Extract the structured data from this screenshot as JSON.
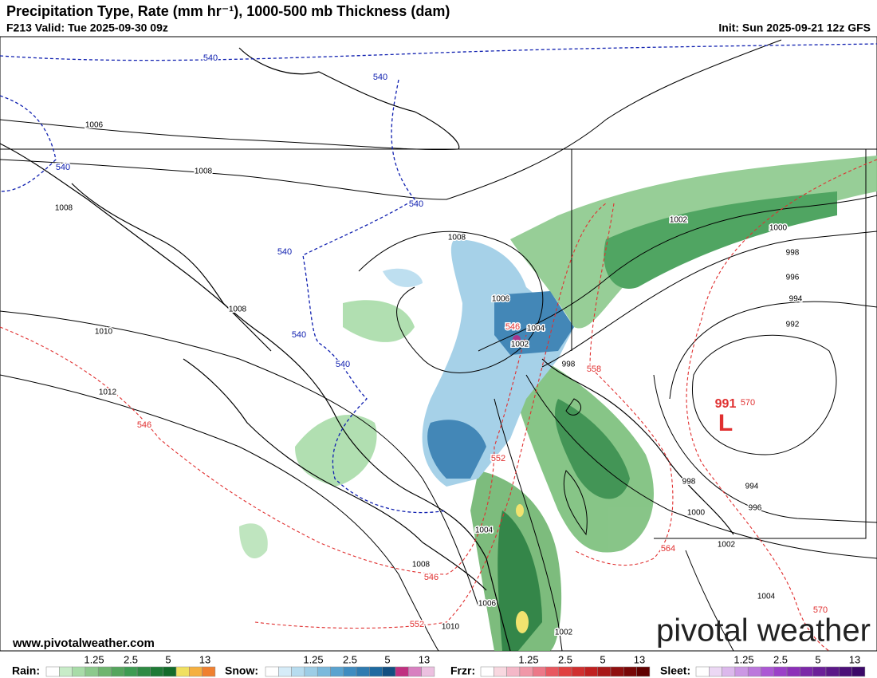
{
  "header": {
    "title": "Precipitation Type, Rate (mm hr⁻¹), 1000-500 mb Thickness (dam)",
    "valid": "F213 Valid: Tue 2025-09-30 09z",
    "init": "Init: Sun 2025-09-21 12z GFS"
  },
  "isobars": [
    1006,
    1008,
    1008,
    1008,
    1006,
    1004,
    1002,
    1008,
    1010,
    1012,
    998,
    1002,
    1000,
    998,
    996,
    994,
    992,
    998,
    994,
    996,
    1000,
    1002,
    1004,
    1004,
    1008,
    1006,
    1010,
    1002
  ],
  "thickness_540": [
    540,
    540,
    540,
    540,
    540,
    540,
    540
  ],
  "thickness_red": [
    546,
    558,
    570,
    552,
    564,
    546,
    552,
    570,
    546
  ],
  "low": {
    "pressure": 991,
    "letter": "L"
  },
  "footer": {
    "website": "www.pivotalweather.com",
    "logo": "pivotal weather"
  },
  "legend": [
    {
      "name": "Rain:",
      "ticks": [
        1.25,
        2.5,
        5,
        13
      ]
    },
    {
      "name": "Snow:",
      "ticks": [
        1.25,
        2.5,
        5,
        13
      ]
    },
    {
      "name": "Frzr:",
      "ticks": [
        1.25,
        2.5,
        5,
        13
      ]
    },
    {
      "name": "Sleet:",
      "ticks": [
        1.25,
        2.5,
        5,
        13
      ]
    }
  ]
}
